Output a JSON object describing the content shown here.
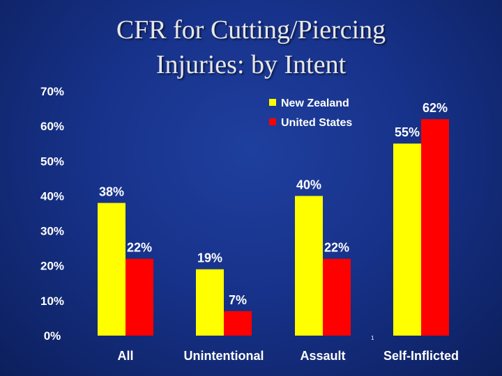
{
  "title": {
    "line1": "CFR for Cutting/Piercing",
    "line2": "Injuries: by Intent"
  },
  "page_marker": "1",
  "colors": {
    "new_zealand": "#ffff00",
    "united_states": "#ff0000",
    "text": "#ffffff"
  },
  "chart_data": {
    "type": "bar",
    "title": "CFR for Cutting/Piercing Injuries: by Intent",
    "xlabel": "",
    "ylabel": "",
    "ylim": [
      0,
      70
    ],
    "yticks": [
      0,
      10,
      20,
      30,
      40,
      50,
      60,
      70
    ],
    "ytick_labels": [
      "0%",
      "10%",
      "20%",
      "30%",
      "40%",
      "50%",
      "60%",
      "70%"
    ],
    "categories": [
      "All",
      "Unintentional",
      "Assault",
      "Self-Inflicted"
    ],
    "grid": false,
    "legend_position": "top-right",
    "series": [
      {
        "name": "New Zealand",
        "color": "#ffff00",
        "values": [
          38,
          19,
          40,
          55
        ],
        "labels": [
          "38%",
          "19%",
          "40%",
          "55%"
        ]
      },
      {
        "name": "United States",
        "color": "#ff0000",
        "values": [
          22,
          7,
          22,
          62
        ],
        "labels": [
          "22%",
          "7%",
          "22%",
          "62%"
        ]
      }
    ]
  }
}
